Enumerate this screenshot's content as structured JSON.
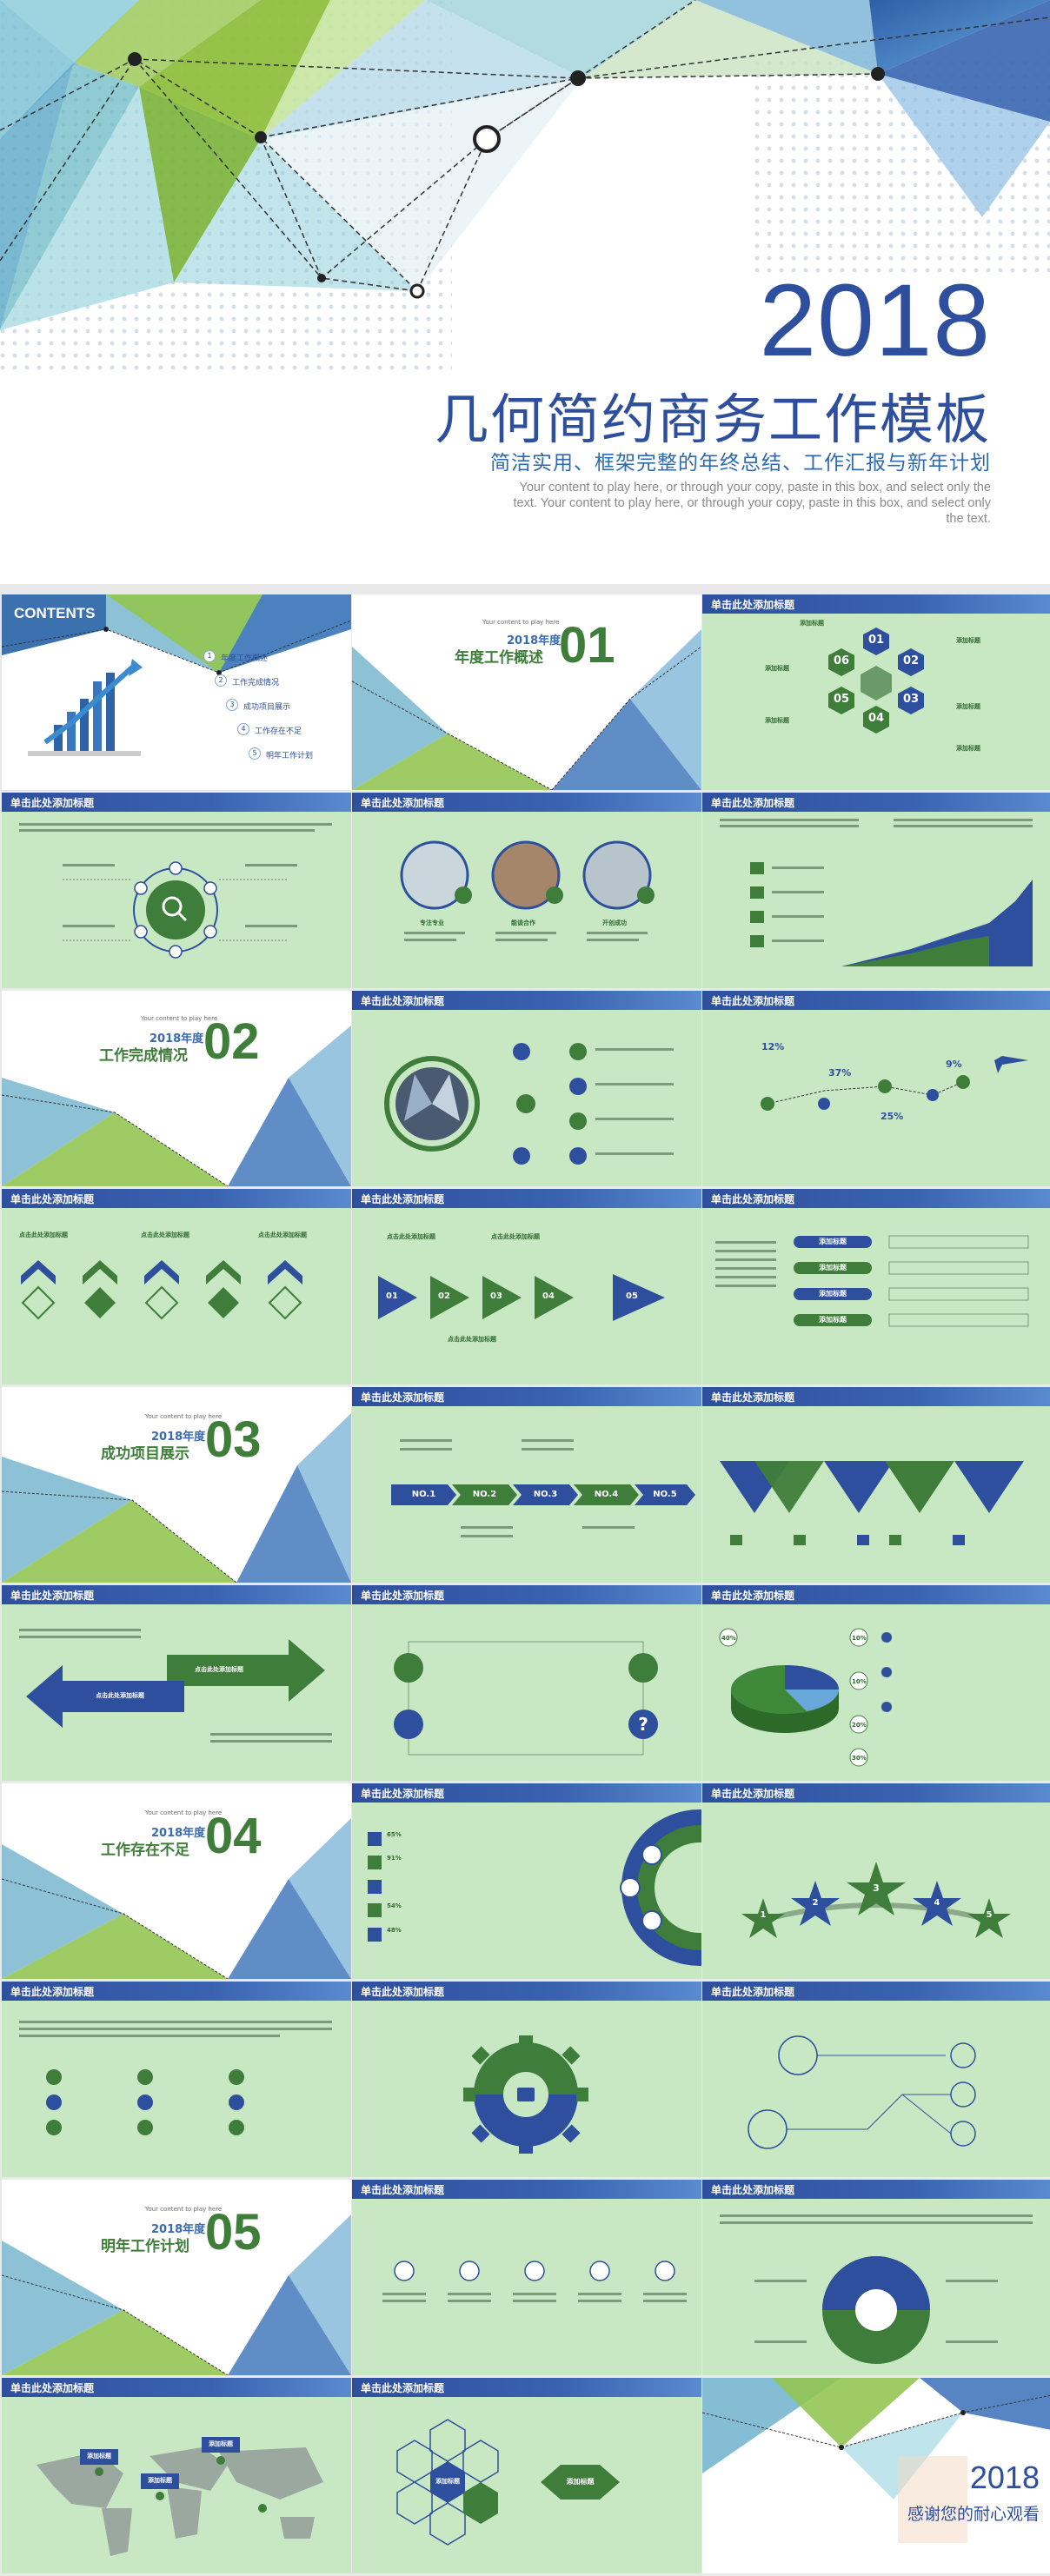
{
  "cover": {
    "year": "2018",
    "title": "几何简约商务工作模板",
    "subtitle": "简洁实用、框架完整的年终总结、工作汇报与新年计划",
    "body": "Your content to play here, or through your copy, paste in this box, and select only the text. Your content to play here, or through your copy, paste in this box, and select only the text."
  },
  "slide_header": "单击此处添加标题",
  "contents": {
    "title": "CONTENTS",
    "items": [
      {
        "num": "1",
        "label": "年度工作概述"
      },
      {
        "num": "2",
        "label": "工作完成情况"
      },
      {
        "num": "3",
        "label": "成功项目展示"
      },
      {
        "num": "4",
        "label": "工作存在不足"
      },
      {
        "num": "5",
        "label": "明年工作计划"
      }
    ]
  },
  "sections": [
    {
      "num": "01",
      "year": "2018年度",
      "title": "年度工作概述",
      "tiny": "Your content to play here"
    },
    {
      "num": "02",
      "year": "2018年度",
      "title": "工作完成情况",
      "tiny": "Your content to play here"
    },
    {
      "num": "03",
      "year": "2018年度",
      "title": "成功项目展示",
      "tiny": "Your content to play here"
    },
    {
      "num": "04",
      "year": "2018年度",
      "title": "工作存在不足",
      "tiny": "Your content to play here"
    },
    {
      "num": "05",
      "year": "2018年度",
      "title": "明年工作计划",
      "tiny": "Your content to play here"
    }
  ],
  "hexagons": [
    "01",
    "02",
    "03",
    "04",
    "05",
    "06"
  ],
  "hex_labels": [
    "添加标题",
    "添加标题",
    "添加标题",
    "添加标题",
    "添加标题",
    "添加标题"
  ],
  "team_labels": [
    "专注专业",
    "能谈合作",
    "开创成功"
  ],
  "percents": [
    "12%",
    "37%",
    "9%",
    "25%"
  ],
  "bold_labels": [
    "点击此处添加标题",
    "点击此处添加标题",
    "点击此处添加标题"
  ],
  "arrows_numbers": [
    "01",
    "02",
    "03",
    "04",
    "05"
  ],
  "flow_numbers": [
    "NO.1",
    "NO.2",
    "NO.3",
    "NO.4",
    "NO.5"
  ],
  "pie_percents": [
    "40%",
    "10%",
    "10%",
    "20%",
    "30%"
  ],
  "progress_pcts": [
    "65%",
    "91%",
    "54%",
    "48%"
  ],
  "star_nums": [
    "1",
    "2",
    "3",
    "4",
    "5"
  ],
  "buttons": [
    "添加标题",
    "添加标题",
    "添加标题",
    "添加标题"
  ],
  "map_labels": [
    "添加标题",
    "添加标题",
    "添加标题",
    "添加标题"
  ],
  "hex_center": "添加标题",
  "thanks": {
    "year": "2018",
    "text": "感谢您的耐心观看"
  }
}
